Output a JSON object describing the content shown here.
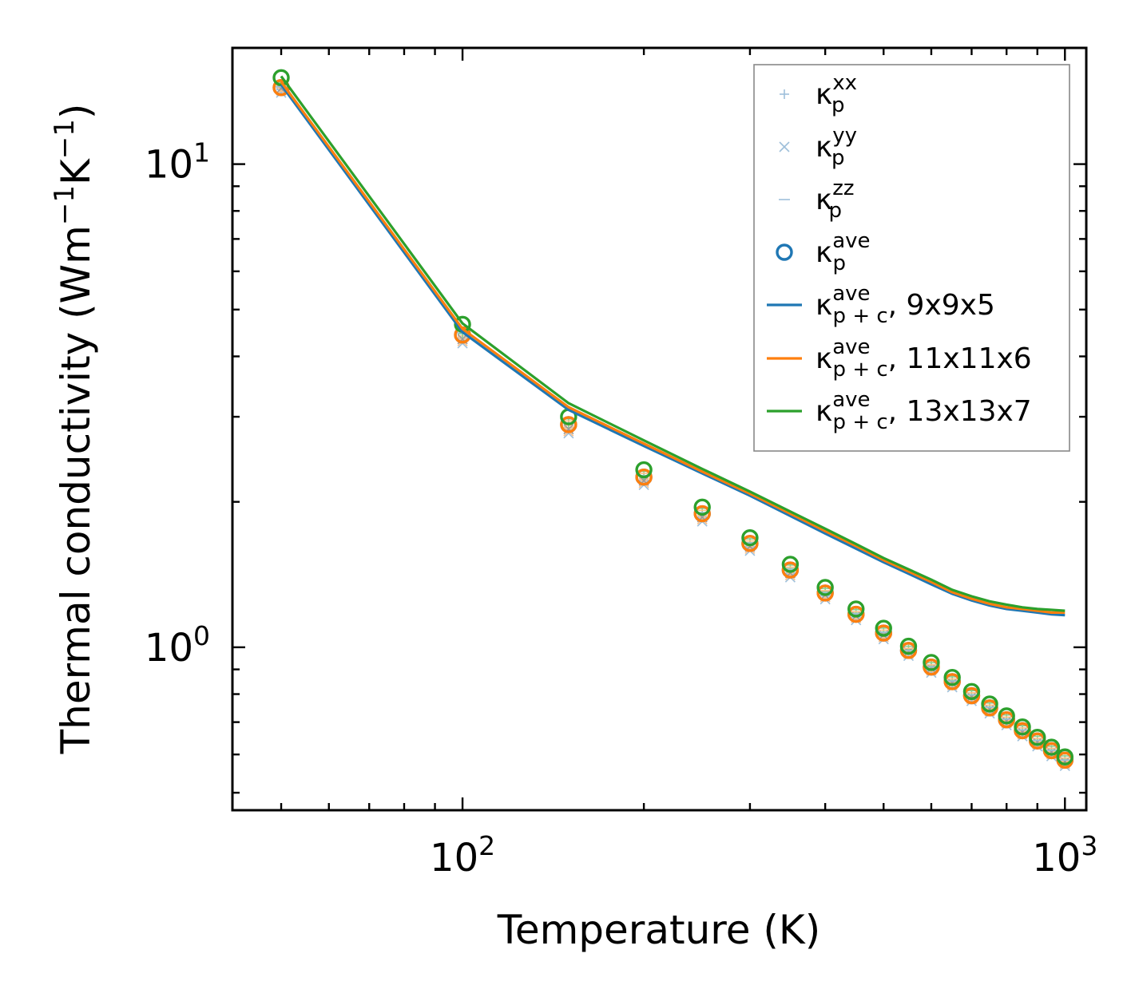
{
  "chart_data": {
    "type": "line",
    "title": "",
    "xlabel": "Temperature (K)",
    "ylabel": "Thermal conductivity (Wm",
    "ylabel_sup1": "−1",
    "ylabel_mid": "K",
    "ylabel_sup2": "−1",
    "ylabel_end": ")",
    "xscale": "log",
    "yscale": "log",
    "xlim": [
      41.5,
      1085
    ],
    "ylim": [
      0.46,
      17.4
    ],
    "xticks": [
      {
        "base": "10",
        "exp": "2",
        "value": 100
      },
      {
        "base": "10",
        "exp": "3",
        "value": 1000
      }
    ],
    "yticks": [
      {
        "base": "10",
        "exp": "0",
        "value": 1
      },
      {
        "base": "10",
        "exp": "1",
        "value": 10
      }
    ],
    "legend_position": "top-right",
    "x": [
      50,
      100,
      150,
      200,
      250,
      300,
      350,
      400,
      450,
      500,
      550,
      600,
      650,
      700,
      750,
      800,
      850,
      900,
      950,
      1000
    ],
    "series": [
      {
        "name": "κp xx",
        "label_main": "κ",
        "label_sub": "p",
        "label_sup": "xx",
        "label_suffix": "",
        "marker": "plus",
        "colors": [
          "#9ebfda",
          "#fbbf88",
          "#8ecf8e"
        ],
        "values": [
          14.4,
          4.41,
          2.88,
          2.24,
          1.88,
          1.63,
          1.44,
          1.29,
          1.165,
          1.065,
          0.98,
          0.905,
          0.845,
          0.79,
          0.745,
          0.704,
          0.668,
          0.636,
          0.607,
          0.58
        ]
      },
      {
        "name": "κp yy",
        "label_main": "κ",
        "label_sub": "p",
        "label_sup": "yy",
        "label_suffix": "",
        "marker": "x",
        "colors": [
          "#9ebfda",
          "#fbbf88",
          "#9a9a9a"
        ],
        "values": [
          14.2,
          4.3,
          2.8,
          2.19,
          1.84,
          1.6,
          1.41,
          1.27,
          1.15,
          1.05,
          0.97,
          0.895,
          0.835,
          0.782,
          0.737,
          0.697,
          0.661,
          0.63,
          0.601,
          0.574
        ]
      },
      {
        "name": "κp zz",
        "label_main": "κ",
        "label_sub": "p",
        "label_sup": "zz",
        "label_suffix": "",
        "marker": "dash",
        "colors": [
          "#9ebfda",
          "#fbbf88",
          "#8ecf8e"
        ],
        "values": [
          14.6,
          4.52,
          2.94,
          2.29,
          1.92,
          1.66,
          1.465,
          1.31,
          1.185,
          1.085,
          0.995,
          0.92,
          0.86,
          0.805,
          0.759,
          0.717,
          0.681,
          0.648,
          0.618,
          0.59
        ]
      },
      {
        "name": "κp ave",
        "label_main": "κ",
        "label_sub": "p",
        "label_sup": "ave",
        "label_suffix": "",
        "marker": "circle",
        "colors": [
          "#1f77b4",
          "#ff7f0e",
          "#2ca02c"
        ],
        "values_by_grid": [
          [
            14.4,
            4.43,
            2.89,
            2.25,
            1.89,
            1.64,
            1.445,
            1.295,
            1.17,
            1.07,
            0.985,
            0.91,
            0.849,
            0.794,
            0.749,
            0.708,
            0.672,
            0.64,
            0.611,
            0.584
          ],
          [
            14.4,
            4.43,
            2.89,
            2.25,
            1.89,
            1.64,
            1.445,
            1.295,
            1.17,
            1.07,
            0.985,
            0.91,
            0.849,
            0.794,
            0.749,
            0.708,
            0.672,
            0.64,
            0.611,
            0.584
          ],
          [
            15.1,
            4.66,
            3.0,
            2.33,
            1.95,
            1.685,
            1.485,
            1.33,
            1.2,
            1.095,
            1.005,
            0.93,
            0.866,
            0.81,
            0.763,
            0.721,
            0.684,
            0.651,
            0.621,
            0.593
          ]
        ]
      },
      {
        "name": "κp+c ave, 9x9x5",
        "label_main": "κ",
        "label_sub": "p + c",
        "label_sup": "ave",
        "label_suffix": ", 9x9x5",
        "marker": "line",
        "color": "#1f77b4",
        "values": [
          14.6,
          4.49,
          3.1,
          2.61,
          2.29,
          2.06,
          1.87,
          1.72,
          1.6,
          1.5,
          1.42,
          1.35,
          1.29,
          1.25,
          1.22,
          1.2,
          1.19,
          1.18,
          1.17,
          1.165
        ]
      },
      {
        "name": "κp+c ave, 11x11x6",
        "label_main": "κ",
        "label_sub": "p + c",
        "label_sup": "ave",
        "label_suffix": ", 11x11x6",
        "marker": "line",
        "color": "#ff7f0e",
        "values": [
          14.8,
          4.56,
          3.14,
          2.64,
          2.31,
          2.08,
          1.89,
          1.74,
          1.62,
          1.515,
          1.435,
          1.365,
          1.3,
          1.26,
          1.23,
          1.21,
          1.2,
          1.19,
          1.18,
          1.18
        ]
      },
      {
        "name": "κp+c ave, 13x13x7",
        "label_main": "κ",
        "label_sub": "p + c",
        "label_sup": "ave",
        "label_suffix": ", 13x13x7",
        "marker": "line",
        "color": "#2ca02c",
        "values": [
          15.2,
          4.68,
          3.2,
          2.68,
          2.34,
          2.1,
          1.91,
          1.76,
          1.635,
          1.53,
          1.45,
          1.38,
          1.315,
          1.275,
          1.245,
          1.225,
          1.21,
          1.2,
          1.195,
          1.19
        ]
      }
    ]
  }
}
